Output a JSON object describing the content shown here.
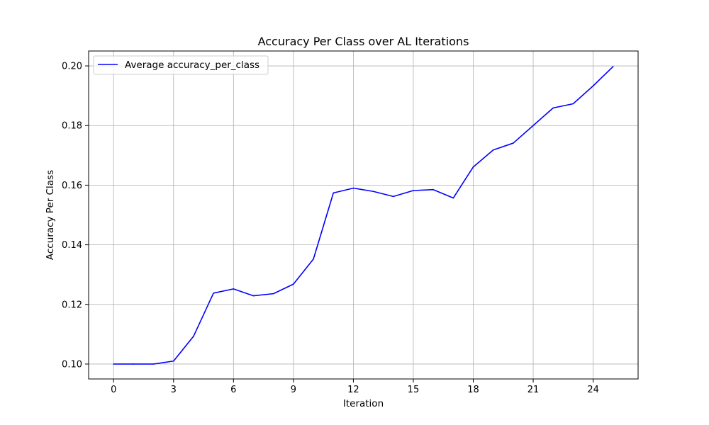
{
  "chart_data": {
    "type": "line",
    "title": "Accuracy Per Class over AL Iterations",
    "xlabel": "Iteration",
    "ylabel": "Accuracy Per Class",
    "xlim": [
      -1.25,
      26.25
    ],
    "ylim": [
      0.095,
      0.205
    ],
    "xticks": [
      0,
      3,
      6,
      9,
      12,
      15,
      18,
      21,
      24
    ],
    "yticks": [
      0.1,
      0.12,
      0.14,
      0.16,
      0.18,
      0.2
    ],
    "ytick_labels": [
      "0.10",
      "0.12",
      "0.14",
      "0.16",
      "0.18",
      "0.20"
    ],
    "grid": true,
    "legend_position": "upper-left",
    "series": [
      {
        "name": "Average accuracy_per_class",
        "color": "#0000ff",
        "x": [
          0,
          1,
          2,
          3,
          4,
          5,
          6,
          7,
          8,
          9,
          10,
          11,
          12,
          13,
          14,
          15,
          16,
          17,
          18,
          19,
          20,
          21,
          22,
          23,
          24,
          25
        ],
        "values": [
          0.1,
          0.1,
          0.1,
          0.101,
          0.1093,
          0.1238,
          0.1252,
          0.1229,
          0.1236,
          0.1268,
          0.1352,
          0.1574,
          0.159,
          0.1579,
          0.1562,
          0.1582,
          0.1585,
          0.1557,
          0.1661,
          0.1718,
          0.1741,
          0.18,
          0.1859,
          0.1873,
          0.1933,
          0.1998
        ]
      }
    ]
  }
}
